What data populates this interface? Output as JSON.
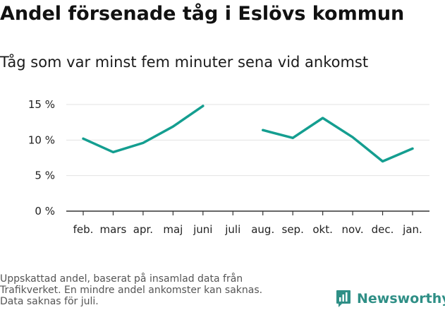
{
  "title": "Andel försenade tåg i Eslövs kommun",
  "subtitle": "Tåg som var minst fem minuter sena vid ankomst",
  "source_lines": [
    "Uppskattad andel, baserat på insamlad data från",
    "Trafikverket. En mindre andel ankomster kan saknas.",
    "Data saknas för juli."
  ],
  "brand": "Newsworthy",
  "colors": {
    "line": "#149e90",
    "brand": "#2f8f86",
    "grid": "#e3e3e3",
    "axis": "#333333"
  },
  "chart_data": {
    "type": "line",
    "title": "Andel försenade tåg i Eslövs kommun",
    "subtitle": "Tåg som var minst fem minuter sena vid ankomst",
    "categories": [
      "feb.",
      "mars",
      "apr.",
      "maj",
      "juni",
      "juli",
      "aug.",
      "sep.",
      "okt.",
      "nov.",
      "dec.",
      "jan."
    ],
    "series": [
      {
        "values": [
          10.2,
          8.3,
          9.6,
          11.9,
          14.8,
          null,
          11.4,
          10.3,
          13.1,
          10.4,
          7.0,
          8.8
        ]
      }
    ],
    "yticks": [
      0,
      5,
      10,
      15
    ],
    "ytick_labels": [
      "0 %",
      "5 %",
      "10 %",
      "15 %"
    ],
    "ylim": [
      0,
      15
    ],
    "xlabel": "",
    "ylabel": "",
    "grid": true,
    "legend": "none"
  }
}
